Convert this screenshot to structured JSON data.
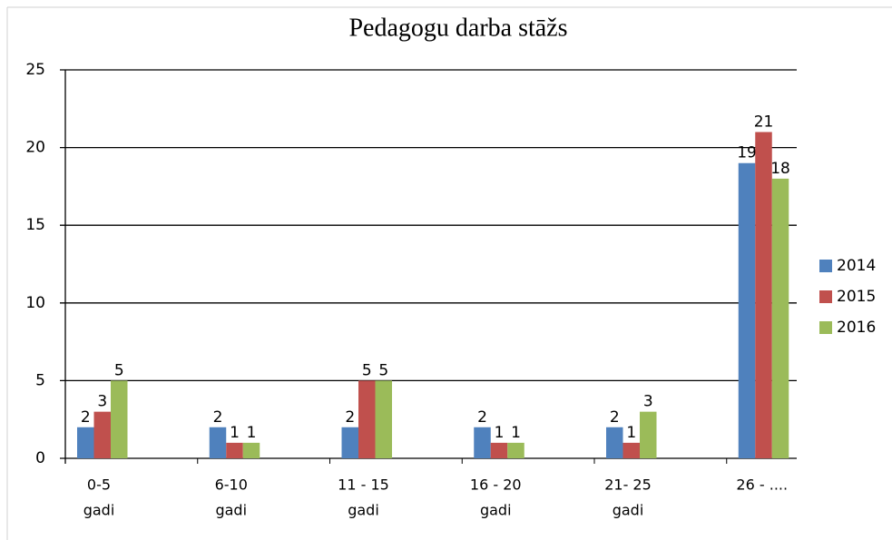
{
  "chart_data": {
    "type": "bar",
    "title": "Pedagogu darba stāžs",
    "categories": [
      [
        "0-5",
        "gadi"
      ],
      [
        "6-10",
        "gadi"
      ],
      [
        "11 - 15",
        "gadi"
      ],
      [
        "16 - 20",
        "gadi"
      ],
      [
        "21- 25",
        "gadi"
      ],
      [
        "26 - ...."
      ]
    ],
    "series": [
      {
        "name": "2014",
        "color": "#4f81bd",
        "values": [
          2,
          2,
          2,
          2,
          2,
          19
        ]
      },
      {
        "name": "2015",
        "color": "#c0504d",
        "values": [
          3,
          1,
          5,
          1,
          1,
          21
        ]
      },
      {
        "name": "2016",
        "color": "#9bbb59",
        "values": [
          5,
          1,
          5,
          1,
          3,
          18
        ]
      }
    ],
    "ylim": [
      0,
      25
    ],
    "yticks": [
      0,
      5,
      10,
      15,
      20,
      25
    ],
    "grid": true,
    "legend": "right"
  }
}
